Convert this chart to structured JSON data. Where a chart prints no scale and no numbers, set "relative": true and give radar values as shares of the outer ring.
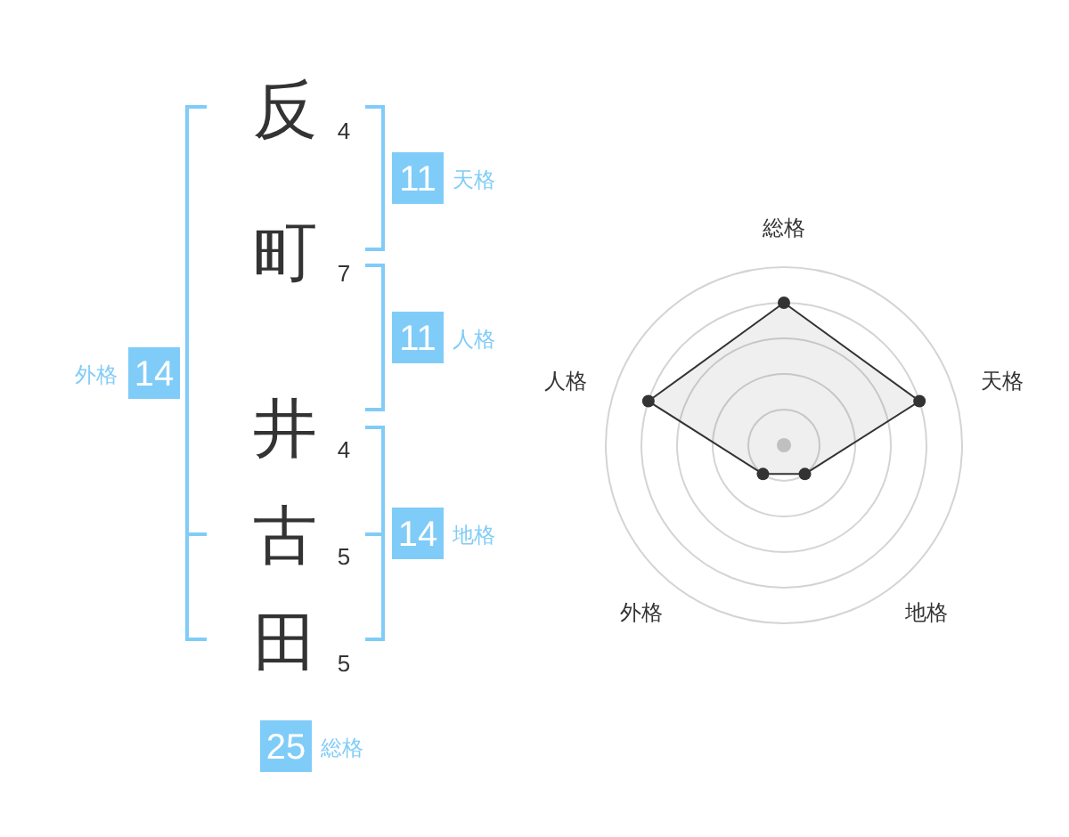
{
  "chart_data": [
    {
      "type": "other",
      "categories": [
        "反",
        "町",
        "井",
        "古",
        "田"
      ],
      "values": [
        4,
        7,
        4,
        5,
        5
      ],
      "data_labels": true,
      "color": "#80ccf8",
      "annotations": [
        "11",
        "天格",
        "11",
        "人格",
        "14",
        "地格",
        "14",
        "外格",
        "25",
        "総格"
      ]
    },
    {
      "type": "radar",
      "categories": [
        "総格",
        "天格",
        "地格",
        "外格",
        "人格"
      ],
      "relative": true,
      "grid": true,
      "marker": "circle",
      "series": [
        {
          "color": "#333333",
          "values": [
            0.8,
            0.8,
            0.2,
            0.2,
            0.8
          ]
        }
      ]
    }
  ]
}
